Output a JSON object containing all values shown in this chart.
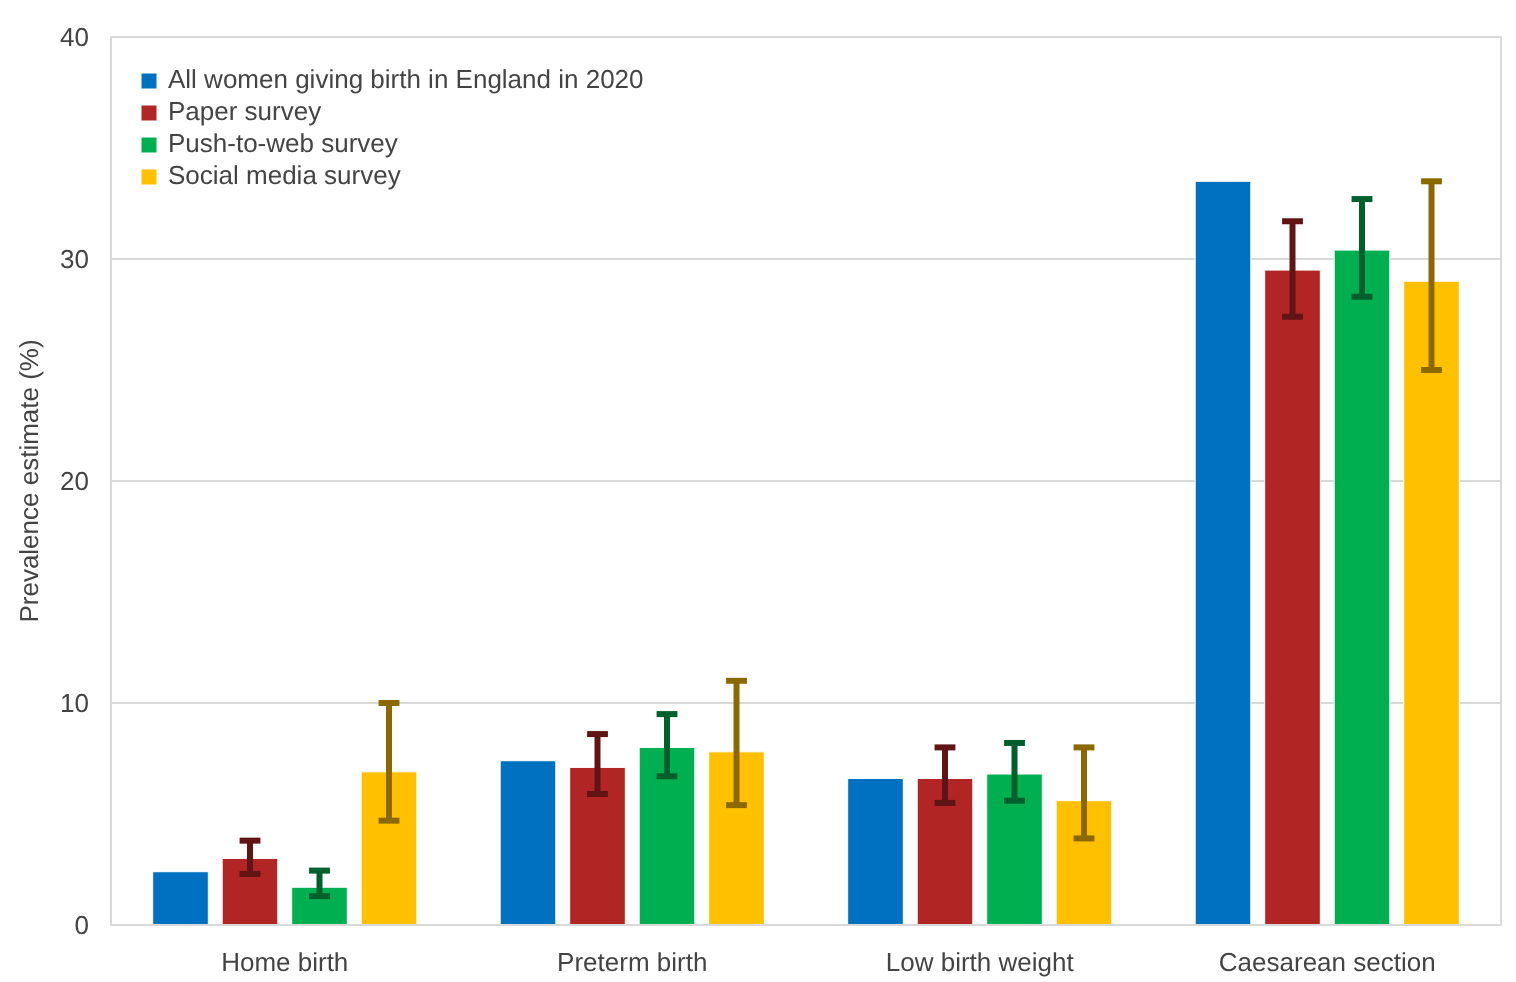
{
  "chart_data": {
    "type": "bar",
    "ylabel": "Prevalence estimate (%)",
    "categories": [
      "Home birth",
      "Preterm birth",
      "Low birth weight",
      "Caesarean section"
    ],
    "series": [
      {
        "name": "All women giving birth in England in 2020",
        "color": "#0070c0",
        "values": [
          2.4,
          7.4,
          6.6,
          33.5
        ]
      },
      {
        "name": "Paper survey",
        "color": "#b22525",
        "values": [
          3.0,
          7.1,
          6.6,
          29.5
        ],
        "errors": [
          [
            2.3,
            3.8
          ],
          [
            5.9,
            8.6
          ],
          [
            5.5,
            8.0
          ],
          [
            27.4,
            31.7
          ]
        ]
      },
      {
        "name": "Push-to-web survey",
        "color": "#00b050",
        "values": [
          1.7,
          8.0,
          6.8,
          30.4
        ],
        "errors": [
          [
            1.3,
            2.45
          ],
          [
            6.7,
            9.5
          ],
          [
            5.6,
            8.2
          ],
          [
            28.3,
            32.7
          ]
        ]
      },
      {
        "name": "Social media survey",
        "color": "#ffc000",
        "values": [
          6.9,
          7.8,
          5.6,
          29.0
        ],
        "errors": [
          [
            4.7,
            10.0
          ],
          [
            5.4,
            11.0
          ],
          [
            3.9,
            8.0
          ],
          [
            25.0,
            33.5
          ]
        ]
      }
    ],
    "ylim": [
      0,
      40
    ],
    "yticks": [
      0,
      10,
      20,
      30,
      40
    ],
    "grid": "y",
    "legend": "top left"
  }
}
